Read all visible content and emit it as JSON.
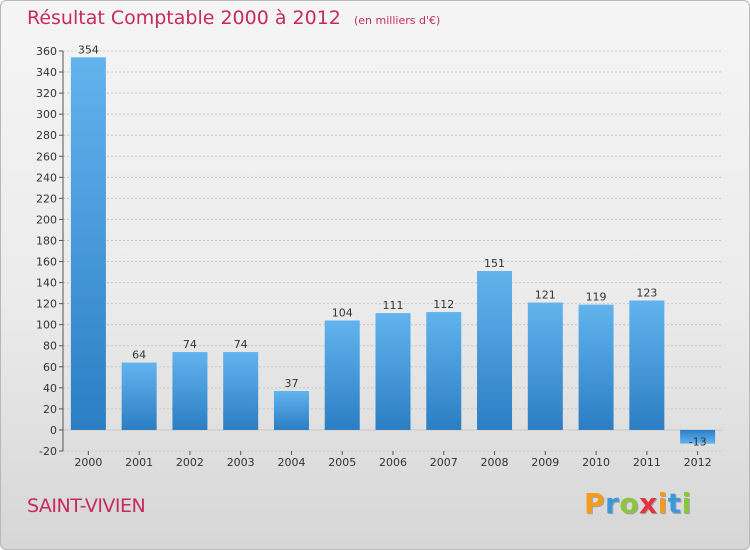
{
  "title": "Résultat Comptable 2000 à 2012",
  "subtitle": "(en milliers d'€)",
  "town": "SAINT-VIVIEN",
  "logo": {
    "text": "Proxiti",
    "letters": [
      {
        "ch": "P",
        "color": "#f39c1e"
      },
      {
        "ch": "r",
        "color": "#3a9ad9"
      },
      {
        "ch": "o",
        "color": "#8cc63f"
      },
      {
        "ch": "x",
        "color": "#e6313f"
      },
      {
        "ch": "i",
        "color": "#f39c1e"
      },
      {
        "ch": "t",
        "color": "#3a9ad9"
      },
      {
        "ch": "i",
        "color": "#8cc63f"
      }
    ]
  },
  "colors": {
    "title": "#c72a5c",
    "bar_light": "#62b4ee",
    "bar_dark": "#2b7ec3",
    "grid": "#c8c8c8"
  },
  "chart_data": {
    "type": "bar",
    "title": "Résultat Comptable 2000 à 2012",
    "subtitle": "(en milliers d'€)",
    "categories": [
      "2000",
      "2001",
      "2002",
      "2003",
      "2004",
      "2005",
      "2006",
      "2007",
      "2008",
      "2009",
      "2010",
      "2011",
      "2012"
    ],
    "values": [
      354,
      64,
      74,
      74,
      37,
      104,
      111,
      112,
      151,
      121,
      119,
      123,
      -13
    ],
    "value_labels": [
      "354",
      "64",
      "74",
      "74",
      "37",
      "104",
      "111",
      "112",
      "151",
      "121",
      "119",
      "123",
      "-13"
    ],
    "ylim": [
      -20,
      360
    ],
    "yticks": [
      -20,
      0,
      20,
      40,
      60,
      80,
      100,
      120,
      140,
      160,
      180,
      200,
      220,
      240,
      260,
      280,
      300,
      320,
      340,
      360
    ],
    "grid": "horizontal dashed",
    "legend": "none"
  }
}
